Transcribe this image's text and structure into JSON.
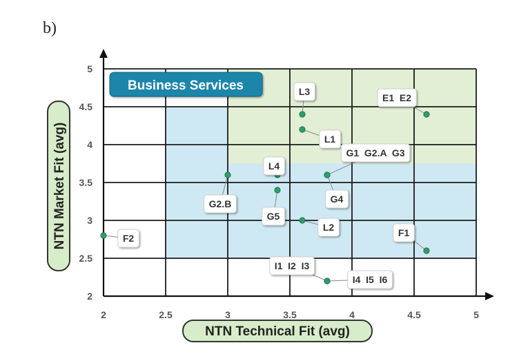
{
  "panel_label": "b)",
  "chart_data": {
    "type": "scatter",
    "title": "Business Services",
    "xlabel": "NTN Technical Fit (avg)",
    "ylabel": "NTN Market Fit (avg)",
    "xlim": [
      2,
      5
    ],
    "ylim": [
      2,
      5
    ],
    "xticks": [
      "2",
      "2.5",
      "3",
      "3.5",
      "4",
      "4.5",
      "5"
    ],
    "yticks": [
      "2",
      "2.5",
      "3",
      "3.5",
      "4",
      "4.5",
      "5"
    ],
    "grid": true,
    "regions": [
      {
        "x": [
          2.5,
          5
        ],
        "y": [
          2.5,
          3.75
        ],
        "color": "#cfe9f4"
      },
      {
        "x": [
          2.5,
          3
        ],
        "y": [
          3.75,
          4.5
        ],
        "color": "#cfe9f4"
      },
      {
        "x": [
          3,
          5
        ],
        "y": [
          3.75,
          5
        ],
        "color": "#e2efd4"
      }
    ],
    "points": [
      {
        "label": "L3",
        "x": 3.6,
        "y": 4.4
      },
      {
        "label": "L1",
        "x": 3.6,
        "y": 4.2
      },
      {
        "label": "E1  E2",
        "x": 4.6,
        "y": 4.4
      },
      {
        "label": "L4",
        "x": 3.4,
        "y": 3.6
      },
      {
        "label": "G1  G2.A  G3",
        "x": 3.8,
        "y": 3.6
      },
      {
        "label": "G4",
        "x": 3.8,
        "y": 3.6
      },
      {
        "label": "G2.B",
        "x": 3.0,
        "y": 3.6
      },
      {
        "label": "G5",
        "x": 3.4,
        "y": 3.4
      },
      {
        "label": "L2",
        "x": 3.6,
        "y": 3.0
      },
      {
        "label": "F1",
        "x": 4.6,
        "y": 2.6
      },
      {
        "label": "F2",
        "x": 2.0,
        "y": 2.8
      },
      {
        "label": "I1  I2  I3",
        "x": 3.8,
        "y": 2.2
      },
      {
        "label": "I4  I5  I6",
        "x": 3.8,
        "y": 2.2
      }
    ],
    "colors": {
      "point": "#2e9d6a",
      "badge": "#1b86aa",
      "axis_label_bg": "#d7ecc9",
      "axis_label_border": "#333333",
      "grid": "#1a1a1a"
    }
  }
}
